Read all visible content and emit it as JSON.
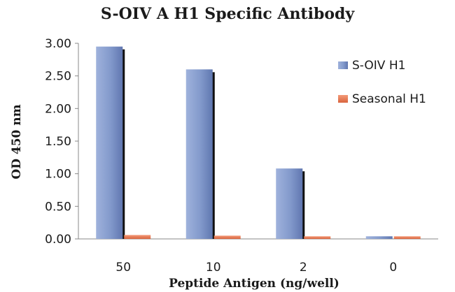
{
  "chart_data": {
    "type": "bar",
    "title": "S-OIV A H1 Specific Antibody",
    "xlabel": "Peptide Antigen (ng/well)",
    "ylabel": "OD 450 nm",
    "categories": [
      "50",
      "10",
      "2",
      "0"
    ],
    "series": [
      {
        "name": "S-OIV H1",
        "values": [
          2.95,
          2.6,
          1.08,
          0.04
        ],
        "color": "#7f96c8"
      },
      {
        "name": "Seasonal H1",
        "values": [
          0.06,
          0.05,
          0.04,
          0.04
        ],
        "color": "#e0734e"
      }
    ],
    "ylim": [
      0,
      3
    ],
    "yticks": [
      "0.00",
      "0.50",
      "1.00",
      "1.50",
      "2.00",
      "2.50",
      "3.00"
    ],
    "grid": false,
    "legend": "right"
  }
}
